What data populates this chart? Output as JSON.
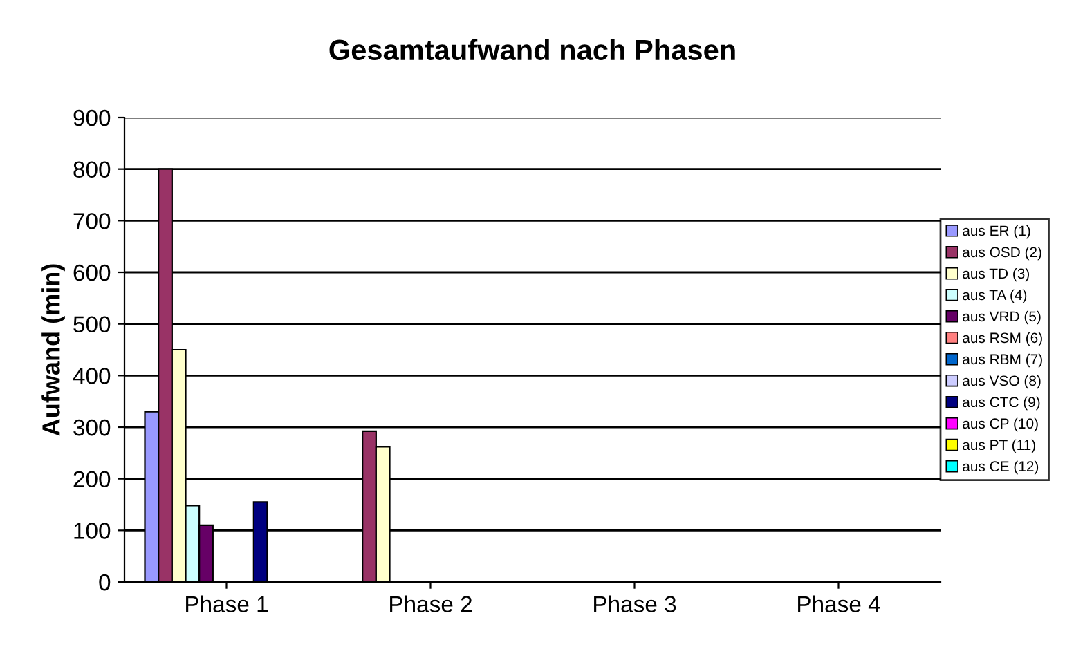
{
  "chart_data": {
    "type": "bar",
    "title": "Gesamtaufwand nach Phasen",
    "ylabel": "Aufwand (min)",
    "categories": [
      "Phase 1",
      "Phase 2",
      "Phase 3",
      "Phase 4"
    ],
    "series": [
      {
        "name": "aus ER (1)",
        "color": "#9999ff",
        "values": [
          330,
          null,
          null,
          null
        ]
      },
      {
        "name": "aus OSD (2)",
        "color": "#993366",
        "values": [
          800,
          292,
          null,
          null
        ]
      },
      {
        "name": "aus TD (3)",
        "color": "#ffffcc",
        "values": [
          450,
          262,
          null,
          null
        ]
      },
      {
        "name": "aus TA (4)",
        "color": "#ccffff",
        "values": [
          148,
          null,
          null,
          null
        ]
      },
      {
        "name": "aus VRD (5)",
        "color": "#660066",
        "values": [
          110,
          null,
          null,
          null
        ]
      },
      {
        "name": "aus RSM (6)",
        "color": "#ff8080",
        "values": [
          null,
          null,
          null,
          null
        ]
      },
      {
        "name": "aus RBM (7)",
        "color": "#0066cc",
        "values": [
          null,
          null,
          null,
          null
        ]
      },
      {
        "name": "aus VSO (8)",
        "color": "#ccccff",
        "values": [
          null,
          null,
          null,
          null
        ]
      },
      {
        "name": "aus CTC (9)",
        "color": "#000080",
        "values": [
          155,
          null,
          null,
          null
        ]
      },
      {
        "name": "aus CP (10)",
        "color": "#ff00ff",
        "values": [
          null,
          null,
          null,
          null
        ]
      },
      {
        "name": "aus PT (11)",
        "color": "#ffff00",
        "values": [
          null,
          null,
          null,
          null
        ]
      },
      {
        "name": "aus CE (12)",
        "color": "#00ffff",
        "values": [
          null,
          null,
          null,
          null
        ]
      }
    ],
    "ylim": [
      0,
      900
    ],
    "yticks": [
      0,
      100,
      200,
      300,
      400,
      500,
      600,
      700,
      800,
      900
    ],
    "grid": "y",
    "legend": "right"
  }
}
